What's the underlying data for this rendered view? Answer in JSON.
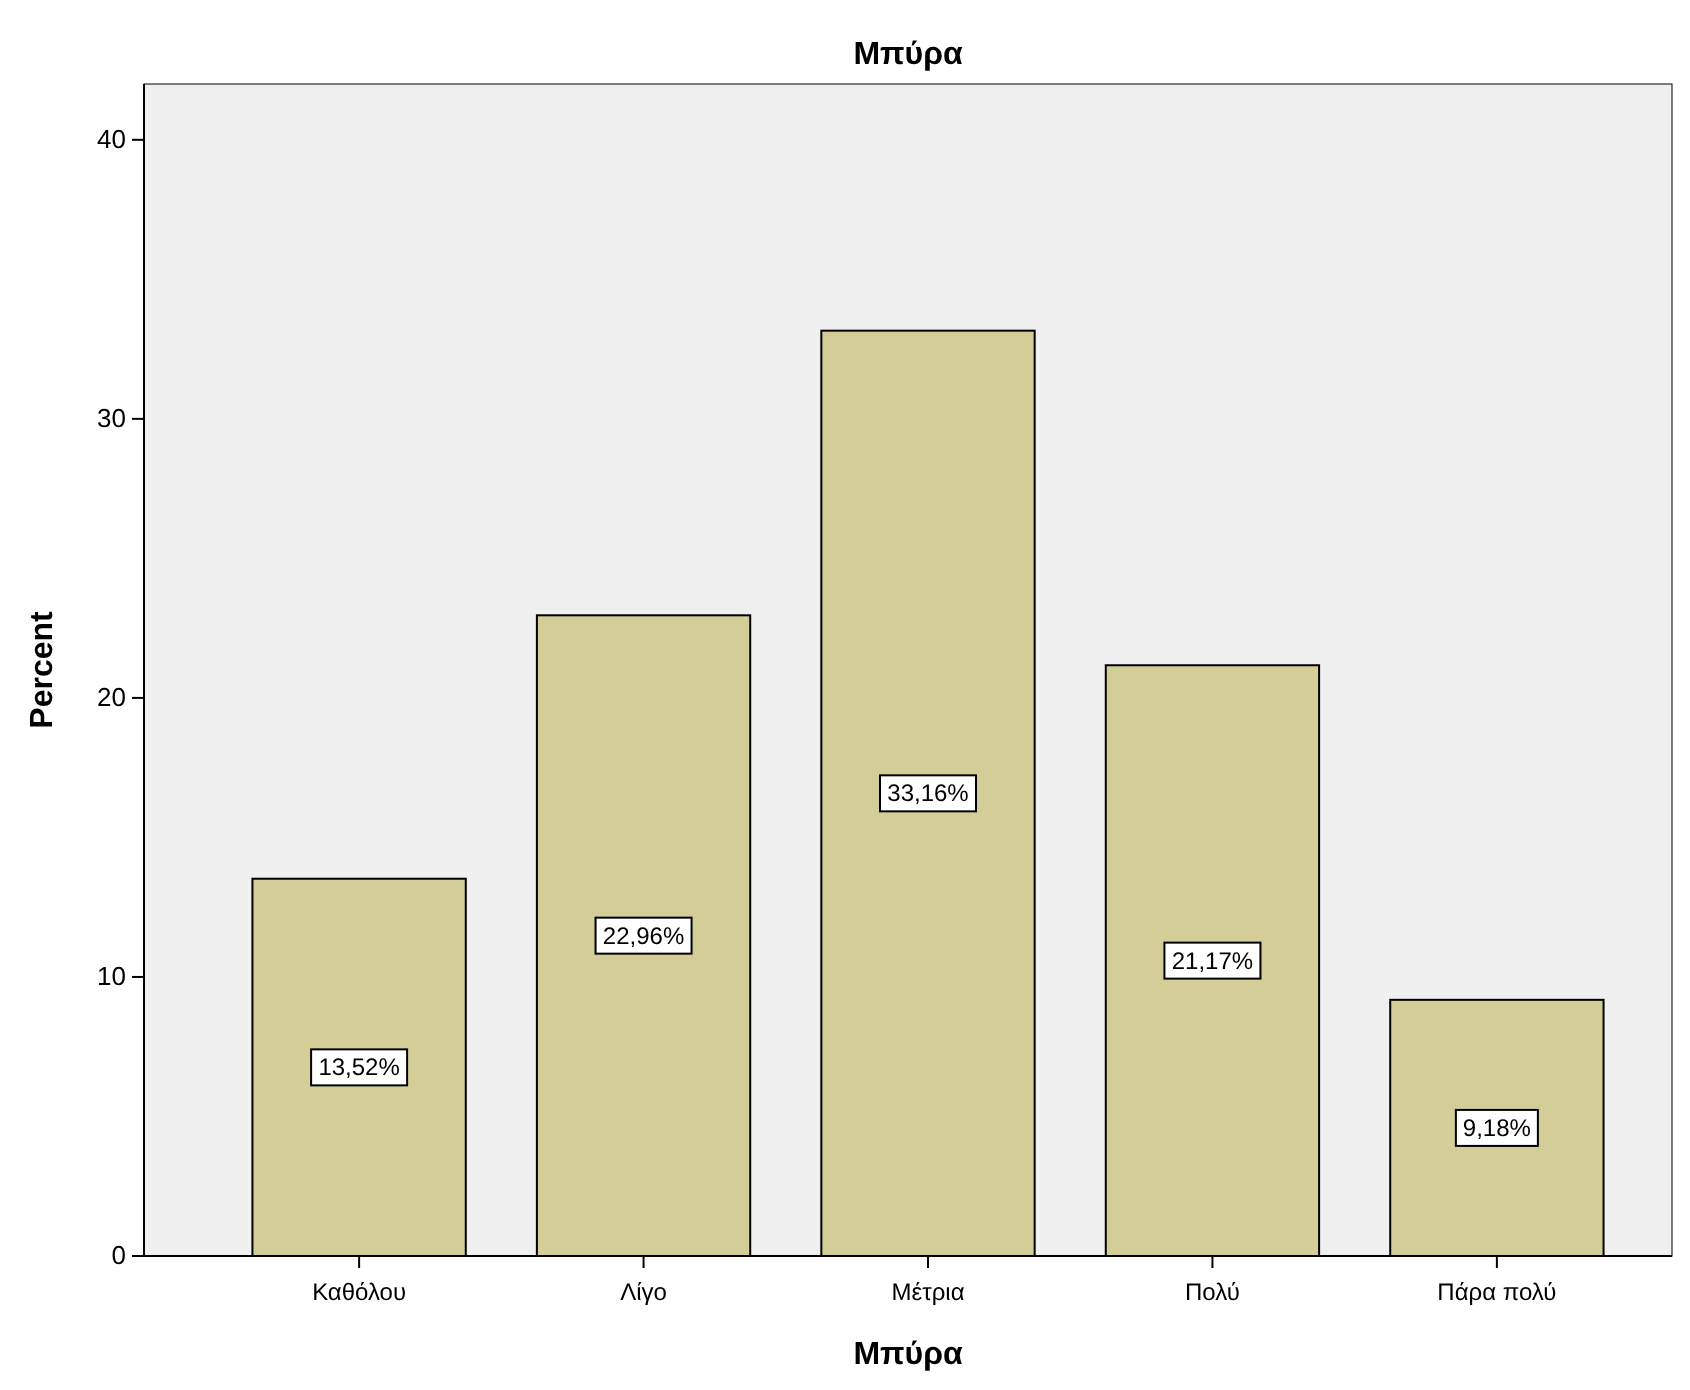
{
  "chart_data": {
    "type": "bar",
    "title": "Μπύρα",
    "xlabel": "Μπύρα",
    "ylabel": "Percent",
    "categories": [
      "Καθόλου",
      "Λίγο",
      "Μέτρια",
      "Πολύ",
      "Πάρα πολύ"
    ],
    "values": [
      13.52,
      22.96,
      33.16,
      21.17,
      9.18
    ],
    "value_labels": [
      "13,52%",
      "22,96%",
      "33,16%",
      "21,17%",
      "9,18%"
    ],
    "color": "#d3ce97",
    "ylim": [
      0,
      42
    ],
    "yticks": [
      0,
      10,
      20,
      30,
      40
    ],
    "grid": false
  }
}
